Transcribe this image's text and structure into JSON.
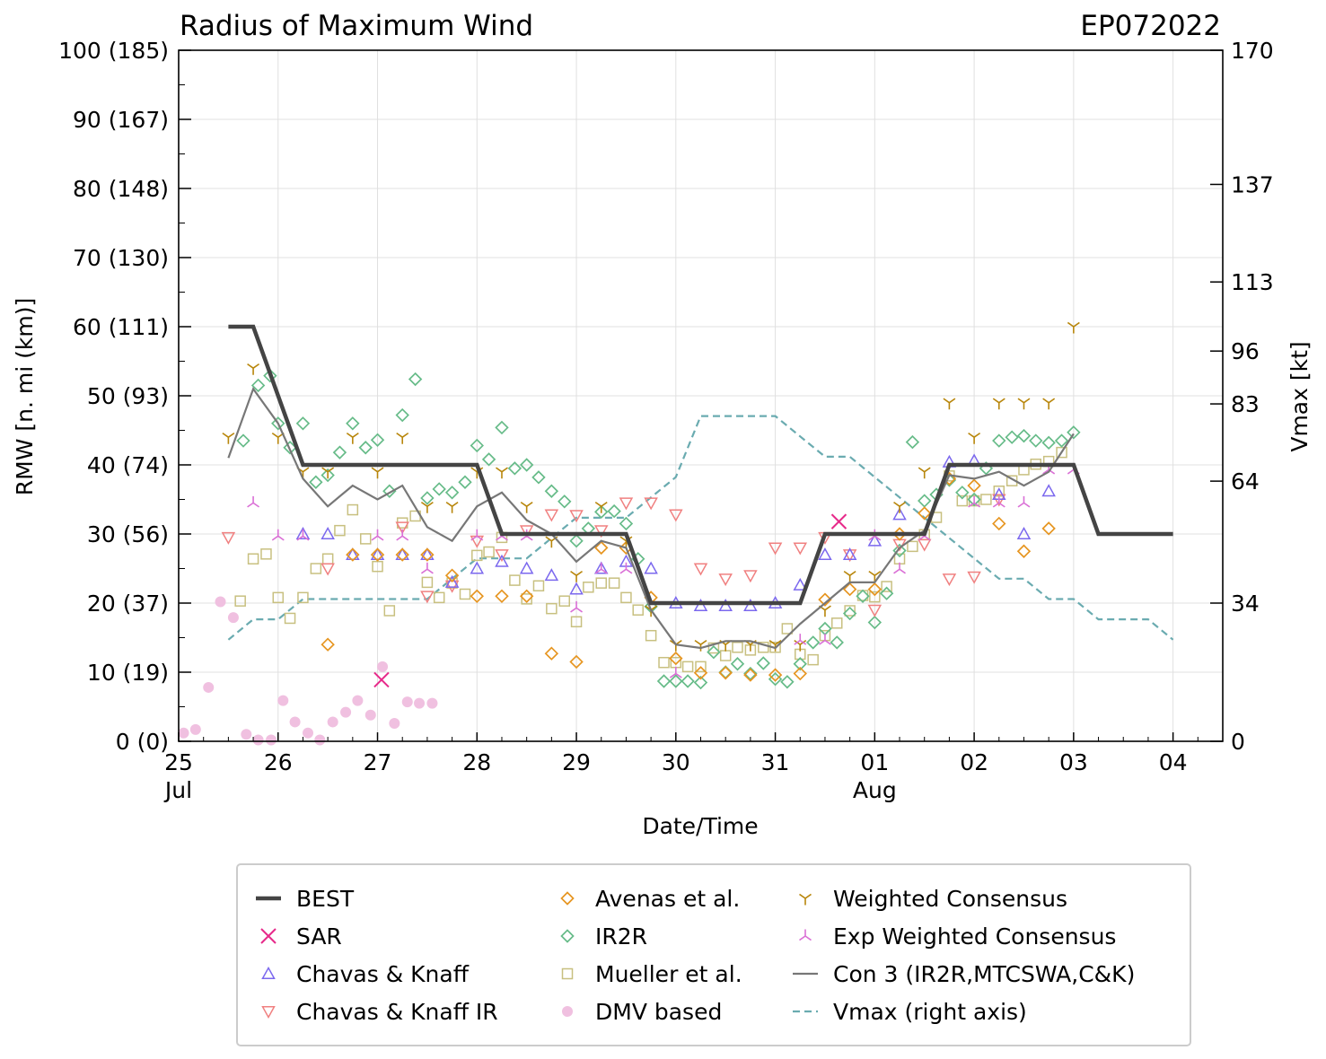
{
  "chart_data": {
    "type": "scatter",
    "title": "Radius of Maximum Wind",
    "storm_id": "EP072022",
    "xlabel": "Date/Time",
    "ylabel": "RMW [n. mi (km)]",
    "ylabel_right": "Vmax [kt]",
    "x_range_days": [
      25,
      35.5
    ],
    "ylim": [
      0,
      100
    ],
    "ylim_right": [
      0,
      170
    ],
    "x_ticks": [
      {
        "day": 25,
        "label": "25",
        "sub": "Jul"
      },
      {
        "day": 26,
        "label": "26",
        "sub": ""
      },
      {
        "day": 27,
        "label": "27",
        "sub": ""
      },
      {
        "day": 28,
        "label": "28",
        "sub": ""
      },
      {
        "day": 29,
        "label": "29",
        "sub": ""
      },
      {
        "day": 30,
        "label": "30",
        "sub": ""
      },
      {
        "day": 31,
        "label": "31",
        "sub": ""
      },
      {
        "day": 32,
        "label": "01",
        "sub": "Aug"
      },
      {
        "day": 33,
        "label": "02",
        "sub": ""
      },
      {
        "day": 34,
        "label": "03",
        "sub": ""
      },
      {
        "day": 35,
        "label": "04",
        "sub": ""
      }
    ],
    "y_ticks_left": [
      {
        "v": 0,
        "label": "0 (0)"
      },
      {
        "v": 10,
        "label": "10 (19)"
      },
      {
        "v": 20,
        "label": "20 (37)"
      },
      {
        "v": 30,
        "label": "30 (56)"
      },
      {
        "v": 40,
        "label": "40 (74)"
      },
      {
        "v": 50,
        "label": "50 (93)"
      },
      {
        "v": 60,
        "label": "60 (111)"
      },
      {
        "v": 70,
        "label": "70 (130)"
      },
      {
        "v": 80,
        "label": "80 (148)"
      },
      {
        "v": 90,
        "label": "90 (167)"
      },
      {
        "v": 100,
        "label": "100 (185)"
      }
    ],
    "y_ticks_right": [
      {
        "v": 0,
        "label": "0"
      },
      {
        "v": 34,
        "label": "34"
      },
      {
        "v": 64,
        "label": "64"
      },
      {
        "v": 83,
        "label": "83"
      },
      {
        "v": 96,
        "label": "96"
      },
      {
        "v": 113,
        "label": "113"
      },
      {
        "v": 137,
        "label": "137"
      },
      {
        "v": 170,
        "label": "170"
      }
    ],
    "series": [
      {
        "name": "BEST",
        "color": "#444444",
        "marker": "line",
        "x": [
          25.5,
          25.75,
          26.0,
          26.25,
          28.0,
          28.25,
          29.5,
          29.75,
          31.25,
          31.5,
          32.5,
          32.75,
          34.0,
          34.25,
          35.0
        ],
        "y": [
          60,
          60,
          50,
          40,
          40,
          30,
          30,
          20,
          20,
          30,
          30,
          40,
          40,
          30,
          30
        ]
      },
      {
        "name": "SAR",
        "color": "#e7298a",
        "marker": "x",
        "x": [
          27.04,
          31.64
        ],
        "y": [
          8.9,
          31.8
        ]
      },
      {
        "name": "Chavas & Knaff",
        "color": "#7b68ee",
        "marker": "triangle-up",
        "x": [
          26.25,
          26.5,
          26.75,
          27.0,
          27.25,
          27.5,
          27.75,
          28.0,
          28.25,
          28.5,
          28.75,
          29.0,
          29.25,
          29.5,
          29.75,
          30.0,
          30.25,
          30.5,
          30.75,
          31.0,
          31.25,
          31.5,
          31.75,
          32.0,
          32.25,
          32.75,
          33.0,
          33.25,
          33.5,
          33.75
        ],
        "y": [
          30,
          30,
          27,
          27,
          27,
          27,
          23,
          25,
          26,
          25,
          24,
          22,
          25,
          26,
          25,
          20,
          19.6,
          19.6,
          19.6,
          20,
          22.6,
          27,
          27,
          29,
          32.8,
          40.4,
          40.6,
          35.7,
          30,
          36.2
        ]
      },
      {
        "name": "Chavas & Knaff IR",
        "color": "#f08080",
        "marker": "triangle-down",
        "x": [
          25.5,
          26.5,
          27.25,
          27.5,
          27.75,
          28.0,
          28.25,
          28.5,
          28.75,
          29.0,
          29.25,
          29.5,
          29.75,
          30.0,
          30.25,
          30.5,
          30.75,
          31.0,
          31.25,
          31.5,
          31.75,
          32.0,
          32.25,
          32.5,
          32.75,
          33.0,
          33.25
        ],
        "y": [
          29.5,
          25,
          31,
          21,
          22.5,
          29,
          27,
          30.5,
          32.8,
          32.7,
          30.5,
          34.5,
          34.5,
          32.8,
          25,
          23.5,
          24,
          28,
          28,
          29.5,
          27,
          19,
          28.5,
          28.5,
          23.5,
          23.8,
          35
        ]
      },
      {
        "name": "DMV based",
        "color": "#f0c0e0",
        "marker": "circle",
        "x": [
          25.05,
          25.17,
          25.3,
          25.42,
          25.55,
          25.68,
          25.8,
          25.93,
          26.05,
          26.17,
          26.3,
          26.42,
          26.55,
          26.68,
          26.8,
          26.93,
          27.05,
          27.17,
          27.3,
          27.42,
          27.55
        ],
        "y": [
          1.2,
          1.7,
          7.8,
          20.2,
          17.9,
          1.0,
          0.2,
          0.2,
          5.9,
          2.8,
          1.2,
          0.2,
          2.8,
          4.2,
          5.9,
          3.8,
          10.8,
          2.6,
          5.7,
          5.5,
          5.5
        ]
      },
      {
        "name": "Avenas et al.",
        "color": "#e69520",
        "marker": "diamond",
        "x": [
          26.5,
          26.75,
          27.0,
          27.25,
          27.5,
          27.75,
          28.0,
          28.25,
          28.5,
          28.75,
          29.0,
          29.25,
          29.5,
          29.75,
          30.0,
          30.25,
          30.5,
          30.75,
          31.0,
          31.25,
          31.5,
          31.75,
          32.0,
          32.25,
          32.5,
          32.75,
          33.0,
          33.25,
          33.5,
          33.75
        ],
        "y": [
          14,
          27,
          27,
          27,
          27,
          24,
          21,
          21,
          21,
          12.7,
          11.5,
          28,
          28,
          20.8,
          12,
          9.9,
          9.9,
          9.6,
          9.6,
          9.8,
          20.5,
          22,
          22,
          30,
          33,
          38,
          37,
          31.5,
          27.5,
          30.8
        ]
      },
      {
        "name": "IR2R",
        "color": "#66bb88",
        "marker": "diamond",
        "x": [
          25.65,
          25.8,
          25.92,
          26.0,
          26.12,
          26.25,
          26.38,
          26.5,
          26.62,
          26.75,
          26.88,
          27.0,
          27.12,
          27.25,
          27.38,
          27.5,
          27.62,
          27.75,
          27.88,
          28.0,
          28.12,
          28.25,
          28.38,
          28.5,
          28.62,
          28.75,
          28.88,
          29.0,
          29.12,
          29.25,
          29.38,
          29.5,
          29.62,
          29.75,
          29.88,
          30.0,
          30.12,
          30.25,
          30.38,
          30.5,
          30.62,
          30.75,
          30.88,
          31.0,
          31.12,
          31.25,
          31.38,
          31.5,
          31.62,
          31.75,
          31.88,
          32.0,
          32.12,
          32.25,
          32.38,
          32.5,
          32.62,
          32.75,
          32.88,
          33.0,
          33.12,
          33.25,
          33.38,
          33.5,
          33.62,
          33.75,
          33.88,
          34.0
        ],
        "y": [
          43.5,
          51.5,
          52.9,
          46,
          42.5,
          46,
          37.5,
          38.5,
          41.8,
          46,
          42.5,
          43.6,
          36.2,
          47.2,
          52.4,
          35.2,
          36.5,
          36,
          37.5,
          42.8,
          40.8,
          45.4,
          39.5,
          40,
          38.2,
          36.2,
          34.7,
          29,
          30.8,
          33.2,
          33.3,
          31.5,
          26.4,
          19.5,
          8.7,
          8.7,
          8.7,
          8.5,
          12.9,
          10,
          11.2,
          9.8,
          11.3,
          9,
          8.6,
          11.2,
          14.3,
          16.3,
          14.3,
          18.5,
          21,
          17.2,
          21.4,
          27.6,
          43.3,
          34.8,
          35.7,
          37.8,
          36,
          35,
          39.5,
          43.5,
          44,
          44.2,
          43.5,
          43.2,
          43.5,
          44.7
        ]
      },
      {
        "name": "Mueller et al.",
        "color": "#c8c080",
        "marker": "square",
        "x": [
          25.62,
          25.75,
          25.88,
          26.0,
          26.12,
          26.25,
          26.38,
          26.5,
          26.62,
          26.75,
          26.88,
          27.0,
          27.12,
          27.25,
          27.38,
          27.5,
          27.62,
          27.75,
          27.88,
          28.0,
          28.12,
          28.25,
          28.38,
          28.5,
          28.62,
          28.75,
          28.88,
          29.0,
          29.12,
          29.25,
          29.38,
          29.5,
          29.62,
          29.75,
          29.88,
          30.0,
          30.12,
          30.25,
          30.38,
          30.5,
          30.62,
          30.75,
          30.88,
          31.0,
          31.12,
          31.25,
          31.38,
          31.5,
          31.62,
          31.75,
          31.88,
          32.0,
          32.12,
          32.25,
          32.38,
          32.5,
          32.62,
          32.75,
          32.88,
          33.0,
          33.12,
          33.25,
          33.38,
          33.5,
          33.62,
          33.75,
          33.88
        ],
        "y": [
          20.3,
          26.4,
          27.1,
          20.8,
          17.8,
          20.8,
          25,
          26.4,
          30.5,
          33.5,
          29.3,
          25.3,
          18.9,
          31.6,
          32.6,
          23,
          20.8,
          22.9,
          21.3,
          26.9,
          27.4,
          29.5,
          23.3,
          20.6,
          22.5,
          19.2,
          20.3,
          17.3,
          22.3,
          22.9,
          22.9,
          20.8,
          19,
          15.3,
          11.4,
          11.4,
          10.8,
          10.8,
          13.5,
          12.4,
          13.6,
          13.2,
          13.6,
          13.6,
          16.3,
          12.6,
          11.8,
          15.3,
          17.1,
          18.9,
          21.1,
          20.9,
          22.4,
          26.4,
          28.2,
          29.9,
          32.4,
          38.4,
          34.8,
          34.8,
          35,
          36.2,
          37.7,
          39.3,
          40.1,
          40.5,
          41.8
        ]
      },
      {
        "name": "Weighted Consensus",
        "color": "#b8860b",
        "marker": "tri-down",
        "x": [
          25.5,
          25.75,
          26.0,
          26.25,
          26.5,
          26.75,
          27.0,
          27.25,
          27.5,
          27.75,
          28.0,
          28.25,
          28.5,
          28.75,
          29.0,
          29.25,
          29.5,
          29.75,
          30.0,
          30.25,
          30.5,
          30.75,
          31.0,
          31.25,
          31.5,
          31.75,
          32.0,
          32.25,
          32.5,
          32.75,
          33.0,
          33.25,
          33.5,
          33.75,
          34.0
        ],
        "y": [
          44,
          54,
          44,
          39,
          39,
          44,
          39,
          44,
          34,
          34,
          39,
          39,
          34,
          29,
          24,
          34,
          29,
          19,
          14,
          14,
          14,
          14,
          14,
          14,
          19,
          24,
          24,
          34,
          39,
          49,
          44,
          49,
          49,
          49,
          60
        ]
      },
      {
        "name": "Exp Weighted Consensus",
        "color": "#da70d6",
        "marker": "tri-up",
        "x": [
          25.75,
          26.0,
          26.25,
          27.0,
          27.25,
          27.5,
          28.0,
          28.25,
          28.5,
          29.0,
          29.25,
          29.5,
          30.0,
          31.25,
          31.5,
          32.0,
          32.25,
          32.5,
          33.0,
          33.25,
          33.5,
          33.75,
          34.0
        ],
        "y": [
          34.5,
          29.7,
          29.7,
          29.7,
          29.7,
          24.9,
          29.7,
          29.7,
          29.7,
          19.3,
          24.9,
          24.9,
          9.8,
          14.6,
          14.6,
          29.7,
          24.9,
          29.7,
          34.5,
          34.5,
          34.5,
          39.3,
          39.3
        ]
      },
      {
        "name": "Con 3 (IR2R,MTCSWA,C&K)",
        "color": "#777777",
        "marker": "line",
        "x": [
          25.5,
          25.75,
          26.0,
          26.25,
          26.5,
          26.75,
          27.0,
          27.25,
          27.5,
          27.75,
          28.0,
          28.25,
          28.5,
          28.75,
          29.0,
          29.25,
          29.5,
          29.75,
          30.0,
          30.25,
          30.5,
          30.75,
          31.0,
          31.25,
          31.5,
          31.75,
          32.0,
          32.25,
          32.5,
          32.75,
          33.0,
          33.25,
          33.5,
          33.75,
          34.0
        ],
        "y": [
          41,
          51,
          46,
          38,
          34,
          37,
          35,
          37,
          31,
          29,
          34,
          36,
          32,
          30,
          26,
          29,
          28,
          19,
          14,
          13.5,
          14.5,
          14.5,
          13.5,
          17,
          20,
          23,
          23,
          28,
          30.5,
          38.5,
          38,
          39,
          37,
          39,
          44.5
        ]
      },
      {
        "name": "Vmax (right axis)",
        "color": "#6aabb0",
        "marker": "dashed",
        "x": [
          25.5,
          25.75,
          26.0,
          26.25,
          26.5,
          26.75,
          27.0,
          27.25,
          27.5,
          27.75,
          28.0,
          28.25,
          28.5,
          28.75,
          29.0,
          29.25,
          29.5,
          29.75,
          30.0,
          30.25,
          30.5,
          30.75,
          31.0,
          31.25,
          31.5,
          31.75,
          32.0,
          32.25,
          32.5,
          32.75,
          33.0,
          33.25,
          33.5,
          33.75,
          34.0,
          34.25,
          34.5,
          34.75,
          35.0
        ],
        "y": [
          25,
          30,
          30,
          35,
          35,
          35,
          35,
          35,
          35,
          40,
          45,
          45,
          45,
          50,
          55,
          55,
          55,
          60,
          65,
          80,
          80,
          80,
          80,
          75,
          70,
          70,
          65,
          60,
          55,
          50,
          45,
          40,
          40,
          35,
          35,
          30,
          30,
          30,
          25
        ]
      }
    ],
    "legend": {
      "placement": "below",
      "items": [
        "BEST",
        "SAR",
        "Chavas & Knaff",
        "Chavas & Knaff IR",
        "Avenas et al.",
        "IR2R",
        "Mueller et al.",
        "DMV based",
        "Weighted Consensus",
        "Exp Weighted Consensus",
        "Con 3 (IR2R,MTCSWA,C&K)",
        "Vmax (right axis)"
      ]
    },
    "grid": true
  }
}
